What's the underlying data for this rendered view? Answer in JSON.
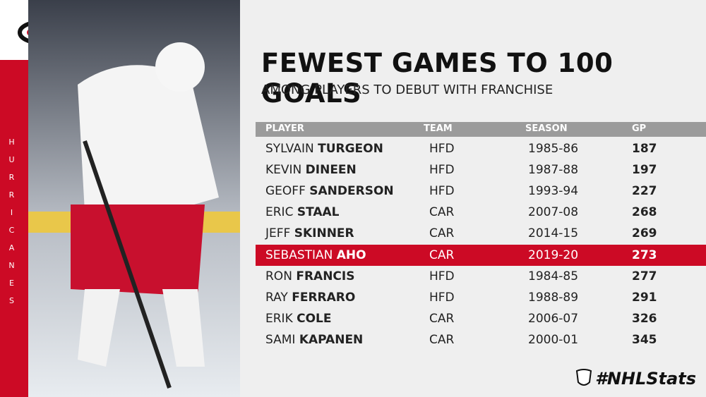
{
  "sidebar": {
    "team_name": "HURRICANES"
  },
  "header": {
    "title": "FEWEST GAMES TO 100 GOALS",
    "subtitle": "AMONG PLAYERS TO DEBUT WITH FRANCHISE"
  },
  "table": {
    "columns": [
      "PLAYER",
      "TEAM",
      "SEASON",
      "GP"
    ],
    "rows": [
      {
        "first": "SYLVAIN",
        "last": "TURGEON",
        "team": "HFD",
        "season": "1985-86",
        "gp": 187
      },
      {
        "first": "KEVIN",
        "last": "DINEEN",
        "team": "HFD",
        "season": "1987-88",
        "gp": 197
      },
      {
        "first": "GEOFF",
        "last": "SANDERSON",
        "team": "HFD",
        "season": "1993-94",
        "gp": 227
      },
      {
        "first": "ERIC",
        "last": "STAAL",
        "team": "CAR",
        "season": "2007-08",
        "gp": 268
      },
      {
        "first": "JEFF",
        "last": "SKINNER",
        "team": "CAR",
        "season": "2014-15",
        "gp": 269
      },
      {
        "first": "SEBASTIAN",
        "last": "AHO",
        "team": "CAR",
        "season": "2019-20",
        "gp": 273,
        "highlight": true
      },
      {
        "first": "RON",
        "last": "FRANCIS",
        "team": "HFD",
        "season": "1984-85",
        "gp": 277
      },
      {
        "first": "RAY",
        "last": "FERRARO",
        "team": "HFD",
        "season": "1988-89",
        "gp": 291
      },
      {
        "first": "ERIK",
        "last": "COLE",
        "team": "CAR",
        "season": "2006-07",
        "gp": 326
      },
      {
        "first": "SAMI",
        "last": "KAPANEN",
        "team": "CAR",
        "season": "2000-01",
        "gp": 345
      }
    ]
  },
  "footer": {
    "hashtag": "#NHLStats"
  }
}
